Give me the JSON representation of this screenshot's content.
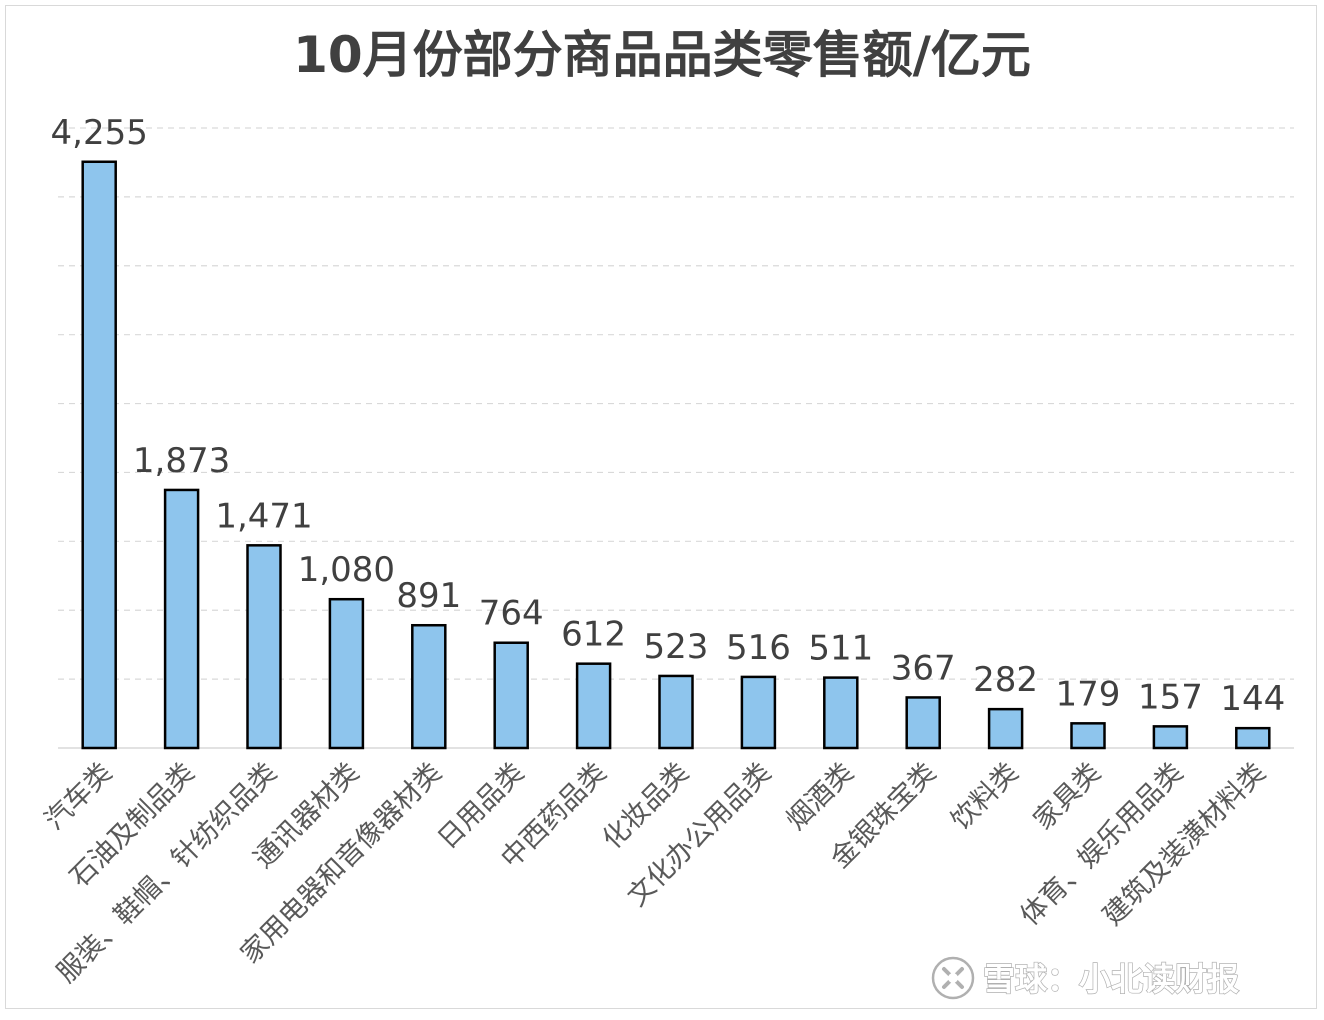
{
  "chart_data": {
    "type": "bar",
    "title": "10月份部分商品品类零售额/亿元",
    "xlabel": "",
    "ylabel": "",
    "categories": [
      "汽车类",
      "石油及制品类",
      "服装、鞋帽、针纺织品类",
      "通讯器材类",
      "家用电器和音像器材类",
      "日用品类",
      "中西药品类",
      "化妆品类",
      "文化办公用品类",
      "烟酒类",
      "金银珠宝类",
      "饮料类",
      "家具类",
      "体育、娱乐用品类",
      "建筑及装潢材料类"
    ],
    "values": [
      4255,
      1873,
      1471,
      1080,
      891,
      764,
      612,
      523,
      516,
      511,
      367,
      282,
      179,
      157,
      144
    ],
    "value_labels": [
      "4,255",
      "1,873",
      "1,471",
      "1,080",
      "891",
      "764",
      "612",
      "523",
      "516",
      "511",
      "367",
      "282",
      "179",
      "157",
      "144"
    ],
    "ylim": [
      0,
      4500
    ],
    "grid": true,
    "legend": "none",
    "bar_color": "#8ec5ed",
    "bar_edge_color": "#000000",
    "grid_color": "#d9d9d9"
  },
  "watermark": {
    "text": "雪球：小北读财报",
    "icon": "snowball-logo-icon"
  }
}
